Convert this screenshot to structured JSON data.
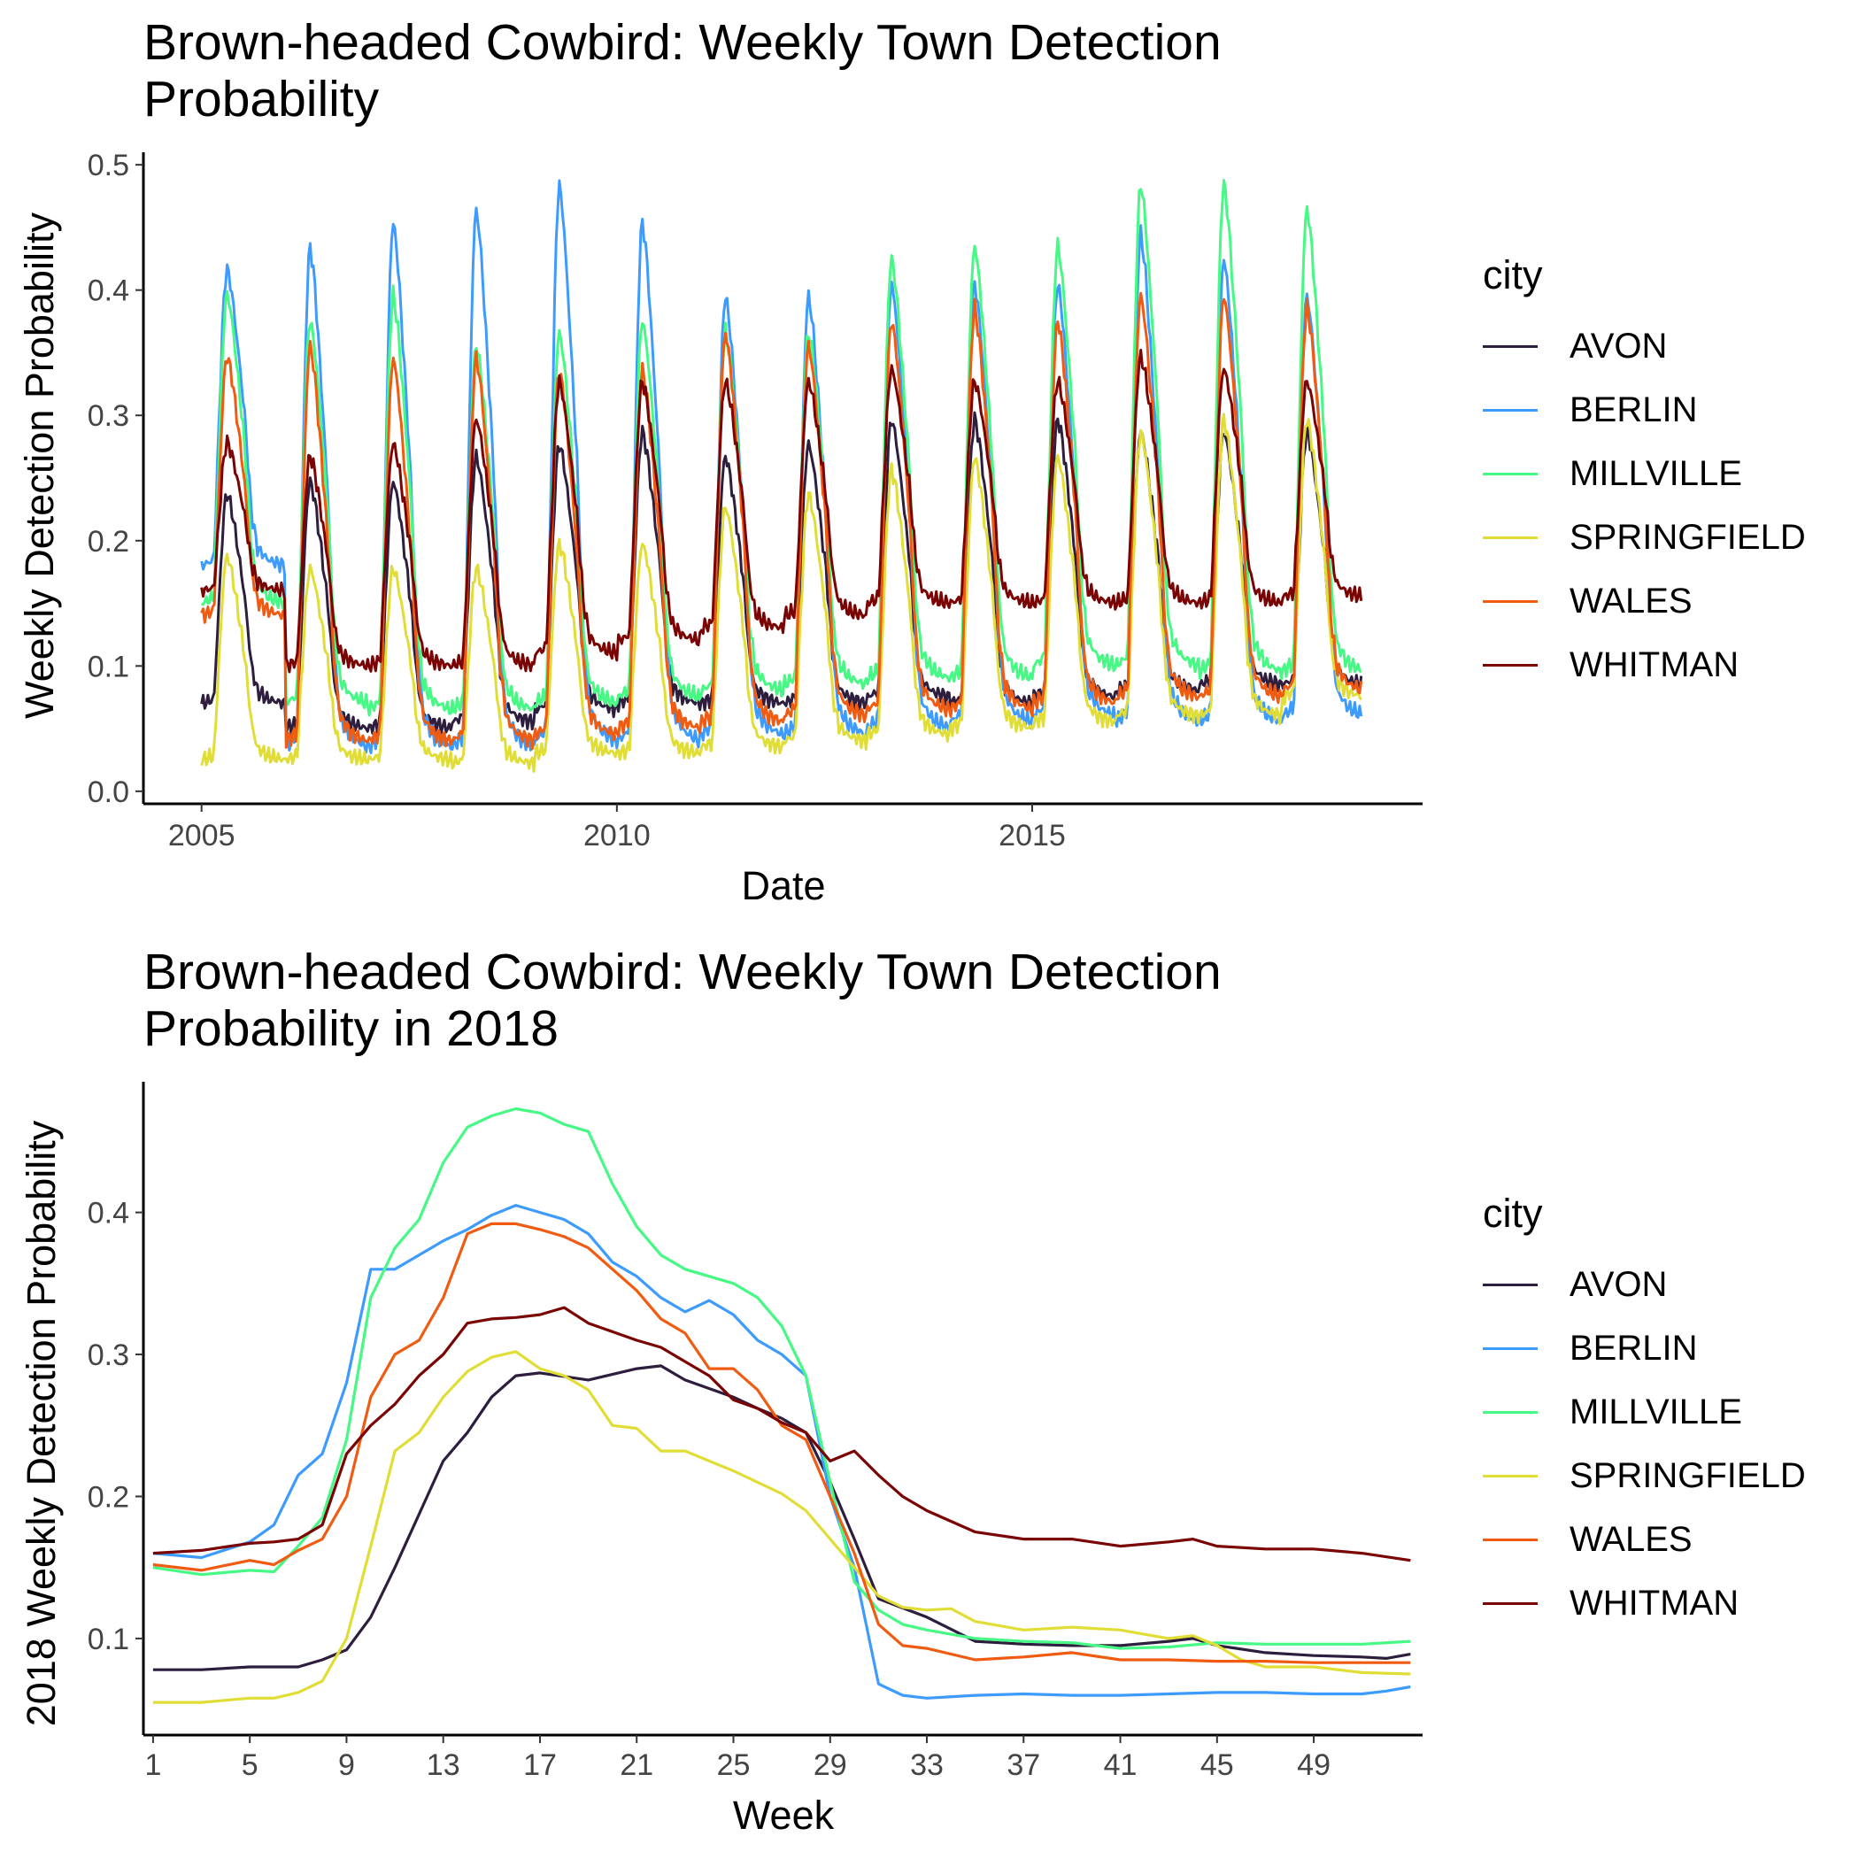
{
  "chart_data": [
    {
      "type": "line",
      "title_lines": [
        "Brown-headed Cowbird: Weekly Town Detection",
        "Probability"
      ],
      "xlabel": "Date",
      "ylabel": "Weekly Detection Probability",
      "x_ticks": [
        "2005",
        "2010",
        "2015"
      ],
      "y_ticks": [
        "0.0",
        "0.1",
        "0.2",
        "0.3",
        "0.4",
        "0.5"
      ],
      "xlim": [
        2004.3,
        2019.7
      ],
      "ylim": [
        -0.01,
        0.51
      ],
      "x_range_data": [
        2005.0,
        2018.97
      ],
      "legend_title": "city",
      "legend_position": "right",
      "grid": false,
      "series": [
        {
          "name": "AVON",
          "color": "#2D1E3E",
          "yearly_peak": [
            0.24,
            0.25,
            0.25,
            0.27,
            0.28,
            0.29,
            0.27,
            0.28,
            0.3,
            0.3,
            0.3,
            0.29,
            0.29,
            0.29
          ],
          "yearly_base": [
            0.07,
            0.05,
            0.05,
            0.055,
            0.065,
            0.07,
            0.07,
            0.07,
            0.075,
            0.07,
            0.075,
            0.08,
            0.085,
            0.085
          ]
        },
        {
          "name": "BERLIN",
          "color": "#3E9BFE",
          "yearly_peak": [
            0.42,
            0.44,
            0.46,
            0.47,
            0.49,
            0.46,
            0.4,
            0.4,
            0.41,
            0.41,
            0.41,
            0.45,
            0.43,
            0.4
          ],
          "yearly_base": [
            0.18,
            0.035,
            0.035,
            0.035,
            0.04,
            0.04,
            0.045,
            0.045,
            0.05,
            0.055,
            0.06,
            0.055,
            0.055,
            0.06
          ]
        },
        {
          "name": "MILLVILLE",
          "color": "#46F884",
          "yearly_peak": [
            0.4,
            0.38,
            0.4,
            0.36,
            0.37,
            0.38,
            0.37,
            0.37,
            0.43,
            0.44,
            0.44,
            0.49,
            0.49,
            0.47
          ],
          "yearly_base": [
            0.15,
            0.07,
            0.065,
            0.065,
            0.07,
            0.075,
            0.08,
            0.085,
            0.09,
            0.09,
            0.1,
            0.1,
            0.095,
            0.095
          ]
        },
        {
          "name": "SPRINGFIELD",
          "color": "#E1DD37",
          "yearly_peak": [
            0.19,
            0.18,
            0.18,
            0.18,
            0.2,
            0.2,
            0.23,
            0.24,
            0.26,
            0.27,
            0.27,
            0.29,
            0.3,
            0.3
          ],
          "yearly_base": [
            0.025,
            0.025,
            0.025,
            0.022,
            0.03,
            0.03,
            0.035,
            0.04,
            0.045,
            0.05,
            0.055,
            0.06,
            0.06,
            0.075
          ]
        },
        {
          "name": "WALES",
          "color": "#F05B12",
          "yearly_peak": [
            0.35,
            0.36,
            0.35,
            0.35,
            0.34,
            0.34,
            0.37,
            0.36,
            0.38,
            0.39,
            0.38,
            0.4,
            0.4,
            0.39
          ],
          "yearly_base": [
            0.14,
            0.04,
            0.04,
            0.04,
            0.045,
            0.05,
            0.055,
            0.06,
            0.065,
            0.065,
            0.07,
            0.075,
            0.075,
            0.08
          ]
        },
        {
          "name": "WHITMAN",
          "color": "#7A0403",
          "yearly_peak": [
            0.28,
            0.27,
            0.28,
            0.3,
            0.33,
            0.33,
            0.33,
            0.33,
            0.34,
            0.33,
            0.33,
            0.35,
            0.34,
            0.33
          ],
          "yearly_base": [
            0.16,
            0.1,
            0.1,
            0.1,
            0.11,
            0.12,
            0.13,
            0.14,
            0.15,
            0.15,
            0.15,
            0.15,
            0.15,
            0.155
          ]
        }
      ]
    },
    {
      "type": "line",
      "title_lines": [
        "Brown-headed Cowbird: Weekly Town Detection",
        "Probability in 2018"
      ],
      "xlabel": "Week",
      "ylabel": "2018 Weekly Detection Probability",
      "x_ticks": [
        "1",
        "5",
        "9",
        "13",
        "17",
        "21",
        "25",
        "29",
        "33",
        "37",
        "41",
        "45",
        "49"
      ],
      "y_ticks": [
        "0.1",
        "0.2",
        "0.3",
        "0.4"
      ],
      "xlim": [
        0.6,
        53.5
      ],
      "ylim": [
        0.032,
        0.492
      ],
      "legend_title": "city",
      "legend_position": "right",
      "grid": false,
      "series": [
        {
          "name": "AVON",
          "color": "#2D1E3E",
          "x": [
            1,
            3,
            5,
            7,
            8,
            9,
            10,
            11,
            13,
            14,
            15,
            16,
            17,
            19,
            21,
            22,
            23,
            25,
            26,
            27,
            28,
            29,
            30,
            31,
            33,
            35,
            37,
            39,
            41,
            43,
            44,
            45,
            47,
            49,
            51,
            52,
            53
          ],
          "values": [
            0.078,
            0.078,
            0.08,
            0.08,
            0.085,
            0.092,
            0.115,
            0.15,
            0.225,
            0.245,
            0.27,
            0.285,
            0.287,
            0.282,
            0.29,
            0.292,
            0.282,
            0.27,
            0.262,
            0.255,
            0.245,
            0.21,
            0.17,
            0.128,
            0.115,
            0.098,
            0.096,
            0.095,
            0.095,
            0.098,
            0.1,
            0.095,
            0.09,
            0.088,
            0.087,
            0.086,
            0.089
          ]
        },
        {
          "name": "BERLIN",
          "color": "#3E9BFE",
          "x": [
            1,
            3,
            5,
            6,
            7,
            8,
            9,
            10,
            11,
            12,
            13,
            14,
            15,
            16,
            17,
            18,
            19,
            20,
            21,
            22,
            23,
            24,
            25,
            26,
            27,
            28,
            29,
            30,
            31,
            32,
            33,
            35,
            37,
            39,
            41,
            43,
            45,
            47,
            49,
            51,
            52,
            53
          ],
          "values": [
            0.16,
            0.157,
            0.168,
            0.18,
            0.215,
            0.23,
            0.28,
            0.36,
            0.36,
            0.37,
            0.38,
            0.388,
            0.398,
            0.405,
            0.4,
            0.395,
            0.385,
            0.365,
            0.355,
            0.34,
            0.33,
            0.338,
            0.328,
            0.31,
            0.3,
            0.285,
            0.2,
            0.15,
            0.068,
            0.06,
            0.058,
            0.06,
            0.061,
            0.06,
            0.06,
            0.061,
            0.062,
            0.062,
            0.061,
            0.061,
            0.063,
            0.066
          ]
        },
        {
          "name": "MILLVILLE",
          "color": "#46F884",
          "x": [
            1,
            3,
            5,
            6,
            7,
            8,
            9,
            10,
            11,
            12,
            13,
            14,
            15,
            16,
            17,
            18,
            19,
            20,
            21,
            22,
            23,
            24,
            25,
            26,
            27,
            28,
            29,
            30,
            31,
            32,
            33,
            35,
            37,
            39,
            41,
            43,
            45,
            47,
            49,
            51,
            53
          ],
          "values": [
            0.15,
            0.145,
            0.148,
            0.147,
            0.165,
            0.185,
            0.24,
            0.34,
            0.375,
            0.395,
            0.435,
            0.46,
            0.468,
            0.473,
            0.47,
            0.462,
            0.457,
            0.42,
            0.39,
            0.37,
            0.36,
            0.355,
            0.35,
            0.34,
            0.32,
            0.285,
            0.21,
            0.14,
            0.12,
            0.11,
            0.106,
            0.1,
            0.098,
            0.097,
            0.093,
            0.094,
            0.097,
            0.096,
            0.096,
            0.096,
            0.098
          ]
        },
        {
          "name": "SPRINGFIELD",
          "color": "#E1DD37",
          "x": [
            1,
            3,
            5,
            6,
            7,
            8,
            9,
            10,
            11,
            12,
            13,
            14,
            15,
            16,
            17,
            18,
            19,
            20,
            21,
            22,
            23,
            24,
            25,
            26,
            27,
            28,
            29,
            30,
            31,
            32,
            33,
            34,
            35,
            37,
            39,
            41,
            43,
            44,
            45,
            46,
            47,
            49,
            51,
            53
          ],
          "values": [
            0.055,
            0.055,
            0.058,
            0.058,
            0.062,
            0.07,
            0.1,
            0.165,
            0.232,
            0.245,
            0.27,
            0.288,
            0.298,
            0.302,
            0.29,
            0.285,
            0.275,
            0.25,
            0.248,
            0.232,
            0.232,
            0.225,
            0.218,
            0.21,
            0.202,
            0.19,
            0.17,
            0.15,
            0.13,
            0.122,
            0.12,
            0.121,
            0.112,
            0.106,
            0.108,
            0.106,
            0.1,
            0.102,
            0.095,
            0.085,
            0.08,
            0.08,
            0.076,
            0.075
          ]
        },
        {
          "name": "WALES",
          "color": "#F05B12",
          "x": [
            1,
            3,
            5,
            6,
            7,
            8,
            9,
            10,
            11,
            12,
            13,
            14,
            15,
            16,
            17,
            18,
            19,
            20,
            21,
            22,
            23,
            24,
            25,
            26,
            27,
            28,
            29,
            30,
            31,
            32,
            33,
            35,
            37,
            39,
            41,
            43,
            45,
            47,
            49,
            51,
            53
          ],
          "values": [
            0.152,
            0.148,
            0.155,
            0.152,
            0.162,
            0.17,
            0.2,
            0.27,
            0.3,
            0.31,
            0.34,
            0.385,
            0.392,
            0.392,
            0.388,
            0.383,
            0.375,
            0.36,
            0.345,
            0.325,
            0.315,
            0.29,
            0.29,
            0.275,
            0.25,
            0.24,
            0.2,
            0.16,
            0.11,
            0.095,
            0.093,
            0.085,
            0.087,
            0.09,
            0.085,
            0.085,
            0.084,
            0.084,
            0.083,
            0.083,
            0.083
          ]
        },
        {
          "name": "WHITMAN",
          "color": "#7A0403",
          "x": [
            1,
            3,
            5,
            6,
            7,
            8,
            9,
            10,
            11,
            12,
            13,
            14,
            15,
            16,
            17,
            18,
            19,
            20,
            21,
            22,
            23,
            24,
            25,
            26,
            27,
            28,
            29,
            30,
            31,
            32,
            33,
            35,
            37,
            39,
            41,
            43,
            44,
            45,
            47,
            49,
            51,
            53
          ],
          "values": [
            0.16,
            0.162,
            0.167,
            0.168,
            0.17,
            0.18,
            0.23,
            0.25,
            0.265,
            0.285,
            0.3,
            0.322,
            0.325,
            0.326,
            0.328,
            0.333,
            0.322,
            0.316,
            0.31,
            0.305,
            0.295,
            0.285,
            0.268,
            0.262,
            0.252,
            0.245,
            0.225,
            0.232,
            0.215,
            0.2,
            0.19,
            0.175,
            0.17,
            0.17,
            0.165,
            0.168,
            0.17,
            0.165,
            0.163,
            0.163,
            0.16,
            0.155
          ]
        }
      ]
    }
  ]
}
